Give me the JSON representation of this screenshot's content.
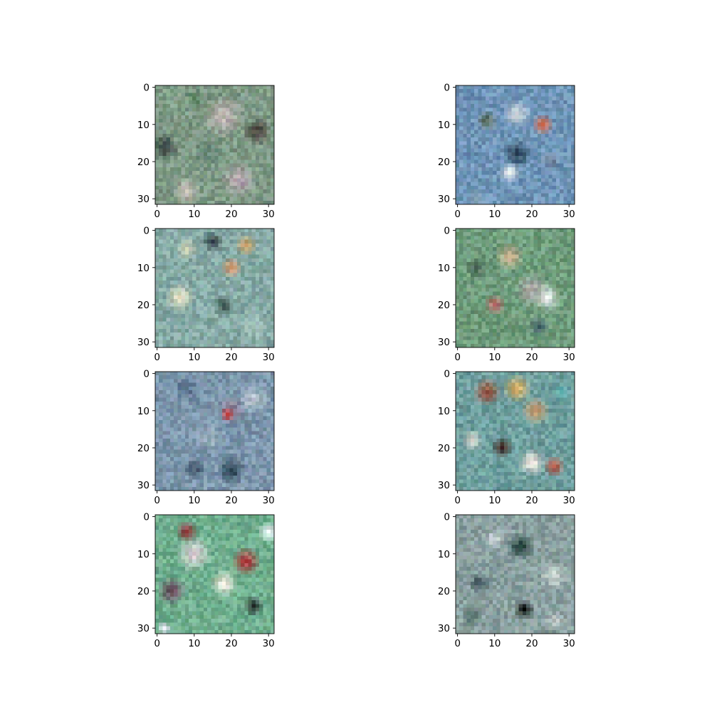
{
  "chart_data": {
    "type": "heatmap",
    "description_of_content": "",
    "layout": {
      "rows": 4,
      "cols": 2
    },
    "image_resolution": [
      32,
      32
    ],
    "x_range": [
      -0.5,
      31.5
    ],
    "y_range": [
      -0.5,
      31.5
    ],
    "y_inverted": true,
    "x_ticks": [
      0,
      10,
      20,
      30
    ],
    "y_ticks": [
      0,
      10,
      20,
      30
    ],
    "grid": false,
    "panels": [
      {
        "base": "#7f9a86",
        "blobs": [
          {
            "c": [
              18,
              8
            ],
            "r": 6,
            "color": "#b9b2ae"
          },
          {
            "c": [
              27,
              12
            ],
            "r": 4,
            "color": "#4e4640"
          },
          {
            "c": [
              2,
              16
            ],
            "r": 4,
            "color": "#3b4a47"
          },
          {
            "c": [
              22,
              25
            ],
            "r": 5,
            "color": "#b6a7b2"
          },
          {
            "c": [
              8,
              28
            ],
            "r": 4,
            "color": "#c7c0b8"
          },
          {
            "c": [
              14,
              18
            ],
            "r": 5,
            "color": "#6f8e7e"
          },
          {
            "c": [
              10,
              3
            ],
            "r": 3,
            "color": "#5f8a68"
          }
        ]
      },
      {
        "base": "#6f95b8",
        "blobs": [
          {
            "c": [
              16,
              7
            ],
            "r": 4,
            "color": "#c9d3dc"
          },
          {
            "c": [
              23,
              10
            ],
            "r": 3,
            "color": "#c96a4f"
          },
          {
            "c": [
              16,
              18
            ],
            "r": 4,
            "color": "#2e4b62"
          },
          {
            "c": [
              14,
              23
            ],
            "r": 3,
            "color": "#dfe6ea"
          },
          {
            "c": [
              8,
              9
            ],
            "r": 3,
            "color": "#5b6f62"
          },
          {
            "c": [
              25,
              20
            ],
            "r": 3,
            "color": "#6e8aa2"
          },
          {
            "c": [
              5,
              30
            ],
            "r": 3,
            "color": "#8aa6bd"
          }
        ]
      },
      {
        "base": "#86aaa6",
        "blobs": [
          {
            "c": [
              15,
              3
            ],
            "r": 3,
            "color": "#3f4a50"
          },
          {
            "c": [
              24,
              4
            ],
            "r": 3,
            "color": "#c8a166"
          },
          {
            "c": [
              20,
              10
            ],
            "r": 3,
            "color": "#d49b73"
          },
          {
            "c": [
              6,
              18
            ],
            "r": 4,
            "color": "#e1dcc0"
          },
          {
            "c": [
              18,
              20
            ],
            "r": 3,
            "color": "#3e5b55"
          },
          {
            "c": [
              8,
              5
            ],
            "r": 3,
            "color": "#cfd3b8"
          },
          {
            "c": [
              26,
              26
            ],
            "r": 4,
            "color": "#9fbcb6"
          }
        ]
      },
      {
        "base": "#6f9c7c",
        "blobs": [
          {
            "c": [
              14,
              7
            ],
            "r": 4,
            "color": "#c7b08e"
          },
          {
            "c": [
              20,
              16
            ],
            "r": 5,
            "color": "#a7a6a3"
          },
          {
            "c": [
              10,
              20
            ],
            "r": 3,
            "color": "#b86f6e"
          },
          {
            "c": [
              24,
              18
            ],
            "r": 4,
            "color": "#dfe4e3"
          },
          {
            "c": [
              22,
              26
            ],
            "r": 3,
            "color": "#3f5c62"
          },
          {
            "c": [
              5,
              10
            ],
            "r": 3,
            "color": "#4f6a5c"
          }
        ]
      },
      {
        "base": "#7d97ad",
        "blobs": [
          {
            "c": [
              20,
              10
            ],
            "r": 4,
            "color": "#8a7a8e"
          },
          {
            "c": [
              19,
              11
            ],
            "r": 2,
            "color": "#d24b4b"
          },
          {
            "c": [
              8,
              4
            ],
            "r": 4,
            "color": "#5e7893"
          },
          {
            "c": [
              26,
              7
            ],
            "r": 4,
            "color": "#b9c6d0"
          },
          {
            "c": [
              10,
              26
            ],
            "r": 3,
            "color": "#44576a"
          },
          {
            "c": [
              20,
              26
            ],
            "r": 4,
            "color": "#2d4657"
          },
          {
            "c": [
              14,
              17
            ],
            "r": 5,
            "color": "#93a9b8"
          }
        ]
      },
      {
        "base": "#6f9f9f",
        "blobs": [
          {
            "c": [
              8,
              5
            ],
            "r": 4,
            "color": "#9b5b46"
          },
          {
            "c": [
              16,
              4
            ],
            "r": 4,
            "color": "#d9b56e"
          },
          {
            "c": [
              21,
              10
            ],
            "r": 4,
            "color": "#c29c70"
          },
          {
            "c": [
              12,
              20
            ],
            "r": 3,
            "color": "#3f2d2a"
          },
          {
            "c": [
              20,
              24
            ],
            "r": 4,
            "color": "#e7e2da"
          },
          {
            "c": [
              26,
              25
            ],
            "r": 3,
            "color": "#b25a4a"
          },
          {
            "c": [
              4,
              18
            ],
            "r": 3,
            "color": "#cdd2c8"
          },
          {
            "c": [
              28,
              5
            ],
            "r": 3,
            "color": "#5aa4a6"
          }
        ]
      },
      {
        "base": "#6fae8e",
        "blobs": [
          {
            "c": [
              10,
              10
            ],
            "r": 5,
            "color": "#d8d2d6"
          },
          {
            "c": [
              8,
              4
            ],
            "r": 3,
            "color": "#8c3b3b"
          },
          {
            "c": [
              24,
              12
            ],
            "r": 4,
            "color": "#b34444"
          },
          {
            "c": [
              18,
              18
            ],
            "r": 4,
            "color": "#e9e6dc"
          },
          {
            "c": [
              4,
              20
            ],
            "r": 4,
            "color": "#6b4f60"
          },
          {
            "c": [
              26,
              24
            ],
            "r": 3,
            "color": "#2f3c38"
          },
          {
            "c": [
              30,
              4
            ],
            "r": 3,
            "color": "#e8f4f4"
          },
          {
            "c": [
              2,
              30
            ],
            "r": 2,
            "color": "#eae8ef"
          }
        ]
      },
      {
        "base": "#8aa0a0",
        "blobs": [
          {
            "c": [
              17,
              8
            ],
            "r": 4,
            "color": "#2d4848"
          },
          {
            "c": [
              18,
              25
            ],
            "r": 3,
            "color": "#151a1a"
          },
          {
            "c": [
              6,
              18
            ],
            "r": 3,
            "color": "#3a4d57"
          },
          {
            "c": [
              26,
              16
            ],
            "r": 4,
            "color": "#c8d2d0"
          },
          {
            "c": [
              10,
              6
            ],
            "r": 3,
            "color": "#c9d0d4"
          },
          {
            "c": [
              4,
              27
            ],
            "r": 3,
            "color": "#56706c"
          },
          {
            "c": [
              26,
              28
            ],
            "r": 3,
            "color": "#b7c4c2"
          }
        ]
      }
    ]
  }
}
